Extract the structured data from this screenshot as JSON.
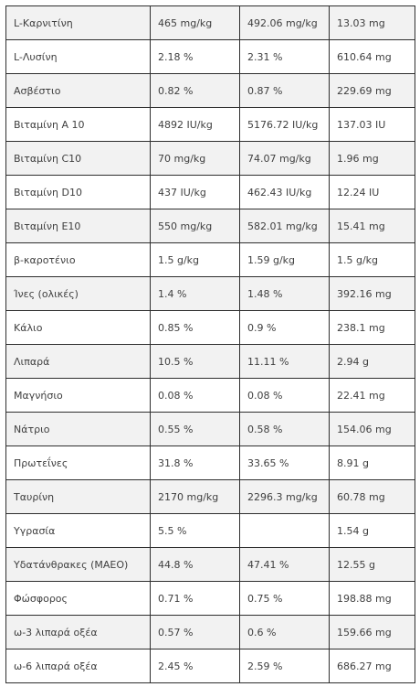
{
  "nutrition_table": {
    "rows": [
      {
        "name": "L-Καρνιτίνη",
        "per_kg": "465 mg/kg",
        "dry_matter": "492.06 mg/kg",
        "per_portion": "13.03 mg"
      },
      {
        "name": "L-Λυσίνη",
        "per_kg": "2.18 %",
        "dry_matter": "2.31 %",
        "per_portion": "610.64 mg"
      },
      {
        "name": "Ασβέστιο",
        "per_kg": "0.82 %",
        "dry_matter": "0.87 %",
        "per_portion": "229.69 mg"
      },
      {
        "name": "Βιταμίνη Α 10",
        "per_kg": "4892 IU/kg",
        "dry_matter": "5176.72 IU/kg",
        "per_portion": "137.03 IU"
      },
      {
        "name": "Βιταμίνη C10",
        "per_kg": "70 mg/kg",
        "dry_matter": "74.07 mg/kg",
        "per_portion": "1.96 mg"
      },
      {
        "name": "Βιταμίνη D10",
        "per_kg": "437 IU/kg",
        "dry_matter": "462.43 IU/kg",
        "per_portion": "12.24 IU"
      },
      {
        "name": "Βιταμίνη E10",
        "per_kg": "550 mg/kg",
        "dry_matter": "582.01 mg/kg",
        "per_portion": "15.41 mg"
      },
      {
        "name": "β-καροτένιο",
        "per_kg": "1.5 g/kg",
        "dry_matter": "1.59 g/kg",
        "per_portion": "1.5 g/kg"
      },
      {
        "name": "Ίνες (ολικές)",
        "per_kg": "1.4 %",
        "dry_matter": "1.48 %",
        "per_portion": "392.16 mg"
      },
      {
        "name": "Κάλιο",
        "per_kg": "0.85 %",
        "dry_matter": "0.9 %",
        "per_portion": "238.1 mg"
      },
      {
        "name": "Λιπαρά",
        "per_kg": "10.5 %",
        "dry_matter": "11.11 %",
        "per_portion": "2.94 g"
      },
      {
        "name": "Μαγνήσιο",
        "per_kg": "0.08 %",
        "dry_matter": "0.08 %",
        "per_portion": "22.41 mg"
      },
      {
        "name": "Νάτριο",
        "per_kg": "0.55 %",
        "dry_matter": "0.58 %",
        "per_portion": "154.06 mg"
      },
      {
        "name": "Πρωτεΐνες",
        "per_kg": "31.8 %",
        "dry_matter": "33.65 %",
        "per_portion": "8.91 g"
      },
      {
        "name": "Ταυρίνη",
        "per_kg": "2170 mg/kg",
        "dry_matter": "2296.3 mg/kg",
        "per_portion": "60.78 mg"
      },
      {
        "name": "Υγρασία",
        "per_kg": "5.5 %",
        "dry_matter": "",
        "per_portion": "1.54 g"
      },
      {
        "name": "Υδατάνθρακες (ΜΑΕΟ)",
        "per_kg": "44.8 %",
        "dry_matter": "47.41 %",
        "per_portion": "12.55 g"
      },
      {
        "name": "Φώσφορος",
        "per_kg": "0.71 %",
        "dry_matter": "0.75 %",
        "per_portion": "198.88 mg"
      },
      {
        "name": "ω-3 λιπαρά οξέα",
        "per_kg": "0.57 %",
        "dry_matter": "0.6 %",
        "per_portion": "159.66 mg"
      },
      {
        "name": "ω-6 λιπαρά οξέα",
        "per_kg": "2.45 %",
        "dry_matter": "2.59 %",
        "per_portion": "686.27 mg"
      }
    ]
  }
}
